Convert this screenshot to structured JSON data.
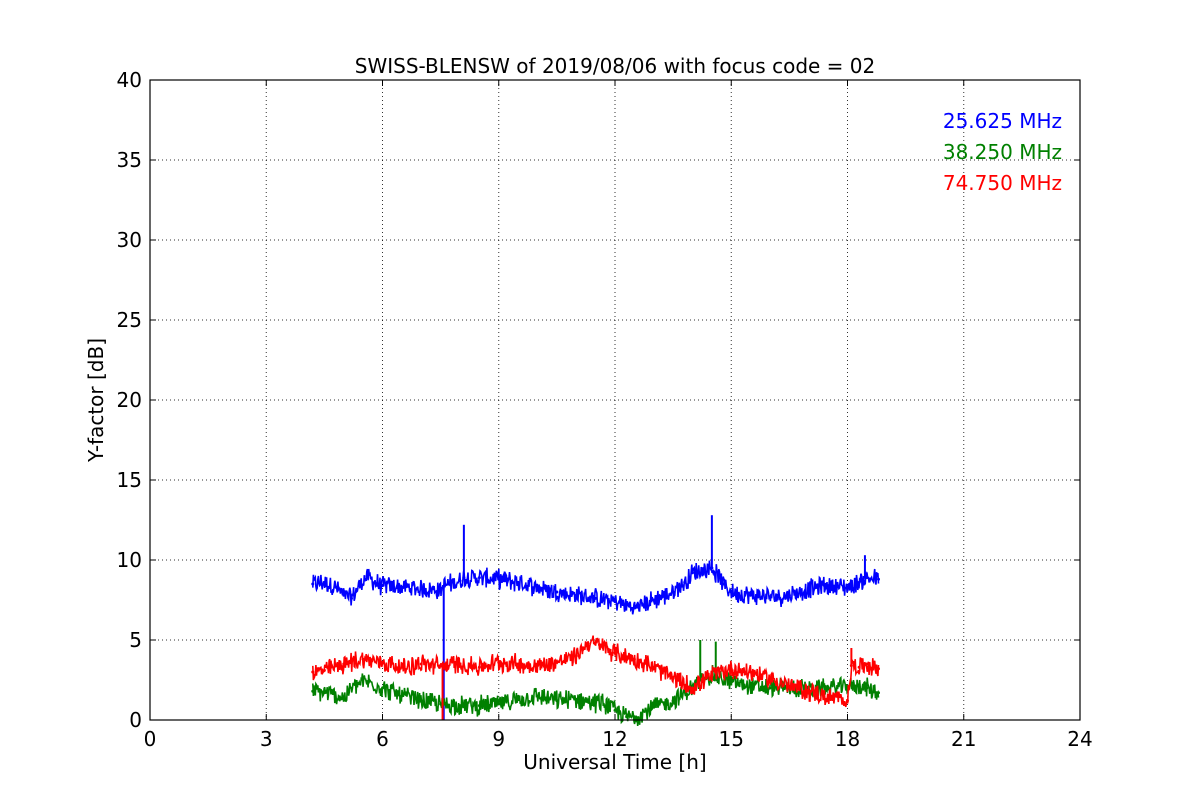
{
  "chart_data": {
    "type": "line",
    "title": "SWISS-BLENSW of 2019/08/06 with focus code = 02",
    "xlabel": "Universal Time [h]",
    "ylabel": "Y-factor [dB]",
    "xlim": [
      0,
      24
    ],
    "ylim": [
      0,
      40
    ],
    "xticks": [
      0,
      3,
      6,
      9,
      12,
      15,
      18,
      21,
      24
    ],
    "yticks": [
      0,
      5,
      10,
      15,
      20,
      25,
      30,
      35,
      40
    ],
    "grid": true,
    "legend_position": "top-right",
    "series": [
      {
        "name": "25.625 MHz",
        "color": "#0000ff",
        "x": [
          4.2,
          4.5,
          4.8,
          5.0,
          5.2,
          5.4,
          5.6,
          5.8,
          6.0,
          6.5,
          7.0,
          7.5,
          7.6,
          7.7,
          8.0,
          8.1,
          8.5,
          9.0,
          9.5,
          10.0,
          10.5,
          11.0,
          11.5,
          12.0,
          12.5,
          13.0,
          13.5,
          13.8,
          14.0,
          14.3,
          14.5,
          14.8,
          15.0,
          15.5,
          16.0,
          16.5,
          17.0,
          17.5,
          18.0,
          18.3,
          18.5,
          18.8
        ],
        "y": [
          8.5,
          8.6,
          8.3,
          7.8,
          7.6,
          8.4,
          9.0,
          8.6,
          8.4,
          8.3,
          8.2,
          8.1,
          8.4,
          8.5,
          8.7,
          8.9,
          8.9,
          8.8,
          8.6,
          8.3,
          8.0,
          7.8,
          7.6,
          7.4,
          7.0,
          7.5,
          8.0,
          8.6,
          9.2,
          9.4,
          9.5,
          8.5,
          8.0,
          7.8,
          7.7,
          7.8,
          8.2,
          8.4,
          8.3,
          8.6,
          8.9,
          8.8
        ],
        "spikes": [
          {
            "x": 7.58,
            "y": 0.0
          },
          {
            "x": 8.1,
            "y": 12.2
          },
          {
            "x": 14.5,
            "y": 12.8
          },
          {
            "x": 18.45,
            "y": 10.3
          }
        ]
      },
      {
        "name": "38.250 MHz",
        "color": "#008000",
        "x": [
          4.2,
          4.5,
          5.0,
          5.3,
          5.6,
          6.0,
          6.5,
          7.0,
          7.5,
          8.0,
          8.5,
          9.0,
          9.5,
          10.0,
          10.5,
          11.0,
          11.5,
          11.8,
          12.0,
          12.3,
          12.5,
          13.0,
          13.5,
          14.0,
          14.3,
          14.5,
          15.0,
          15.5,
          16.0,
          16.5,
          17.0,
          17.5,
          18.0,
          18.3,
          18.5,
          18.8
        ],
        "y": [
          1.8,
          1.7,
          1.4,
          2.2,
          2.4,
          2.0,
          1.5,
          1.2,
          1.0,
          0.9,
          0.9,
          1.0,
          1.3,
          1.5,
          1.2,
          1.3,
          1.1,
          1.0,
          0.6,
          0.2,
          0.2,
          0.8,
          1.2,
          2.0,
          2.6,
          2.8,
          2.4,
          2.1,
          2.0,
          2.0,
          1.9,
          2.0,
          2.1,
          2.2,
          2.0,
          1.7
        ],
        "spikes": [
          {
            "x": 14.2,
            "y": 5.0
          },
          {
            "x": 14.6,
            "y": 4.9
          }
        ]
      },
      {
        "name": "74.750 MHz",
        "color": "#ff0000",
        "x": [
          4.2,
          4.5,
          5.0,
          5.5,
          6.0,
          6.5,
          7.0,
          7.5,
          8.0,
          8.5,
          9.0,
          9.5,
          10.0,
          10.5,
          11.0,
          11.3,
          11.6,
          12.0,
          12.5,
          13.0,
          13.5,
          14.0,
          14.5,
          15.0,
          15.5,
          16.0,
          16.5,
          17.0,
          17.5,
          18.0,
          18.1,
          18.3,
          18.5,
          18.8
        ],
        "y": [
          3.0,
          3.1,
          3.5,
          3.8,
          3.6,
          3.3,
          3.5,
          3.4,
          3.5,
          3.3,
          3.6,
          3.5,
          3.4,
          3.6,
          4.0,
          4.8,
          4.7,
          4.2,
          3.8,
          3.3,
          2.6,
          2.0,
          2.8,
          3.2,
          3.0,
          2.6,
          2.1,
          1.8,
          1.4,
          1.2,
          3.4,
          3.3,
          3.5,
          3.2
        ],
        "spikes": [
          {
            "x": 7.55,
            "y": 0.0
          },
          {
            "x": 18.1,
            "y": 4.5
          }
        ]
      }
    ]
  }
}
